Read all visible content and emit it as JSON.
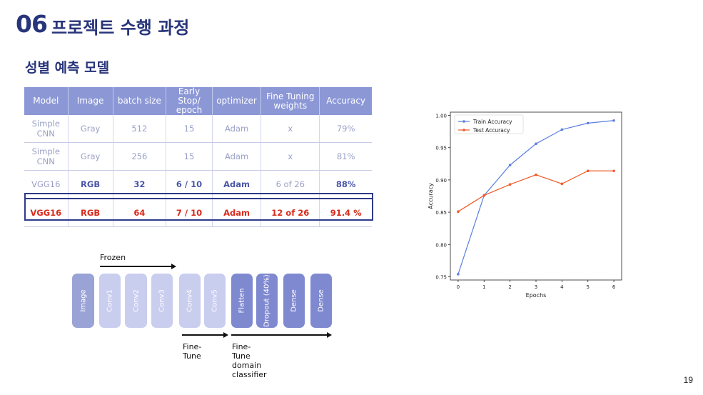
{
  "header": {
    "number": "06",
    "title": "프로젝트 수행 과정"
  },
  "subtitle": "성별 예측 모델",
  "table": {
    "columns": [
      "Model",
      "Image",
      "batch size",
      "Early Stop/\nepoch",
      "optimizer",
      "Fine Tuning\nweights",
      "Accuracy"
    ],
    "rows": [
      [
        "Simple CNN",
        "Gray",
        "512",
        "15",
        "Adam",
        "x",
        "79%"
      ],
      [
        "Simple CNN",
        "Gray",
        "256",
        "15",
        "Adam",
        "x",
        "81%"
      ],
      [
        "VGG16",
        "RGB",
        "32",
        "6 / 10",
        "Adam",
        "6 of 26",
        "88%"
      ],
      [
        "VGG16",
        "RGB",
        "64",
        "7 / 10",
        "Adam",
        "12 of 26",
        "91.4 %"
      ]
    ]
  },
  "architecture": {
    "frozen_label": "Frozen",
    "finetune_label": "Fine-Tune",
    "classifier_label": "Fine-Tune domain classifier",
    "blocks": [
      "Image",
      "Conv1",
      "Conv2",
      "Conv3",
      "Conv4",
      "Conv5",
      "Flatten",
      "Dropout (40%)",
      "Dense",
      "Dense"
    ]
  },
  "chart_data": {
    "type": "line",
    "xlabel": "Epochs",
    "ylabel": "Accuracy",
    "x": [
      0,
      1,
      2,
      3,
      4,
      5,
      6
    ],
    "xticks": [
      "0",
      "1",
      "2",
      "3",
      "4",
      "5",
      "6"
    ],
    "yticks": [
      "0.75",
      "0.80",
      "0.85",
      "0.90",
      "0.95",
      "1.00"
    ],
    "ylim": [
      0.745,
      1.005
    ],
    "xlim": [
      -0.3,
      6.3
    ],
    "legend_position": "top-left",
    "series": [
      {
        "name": "Train Accuracy",
        "color": "#5b7fe0",
        "values": [
          0.754,
          0.876,
          0.923,
          0.956,
          0.978,
          0.988,
          0.992
        ]
      },
      {
        "name": "Test Accuracy",
        "color": "#f05a24",
        "values": [
          0.851,
          0.876,
          0.893,
          0.908,
          0.894,
          0.914,
          0.914
        ]
      }
    ]
  },
  "page_number": "19"
}
